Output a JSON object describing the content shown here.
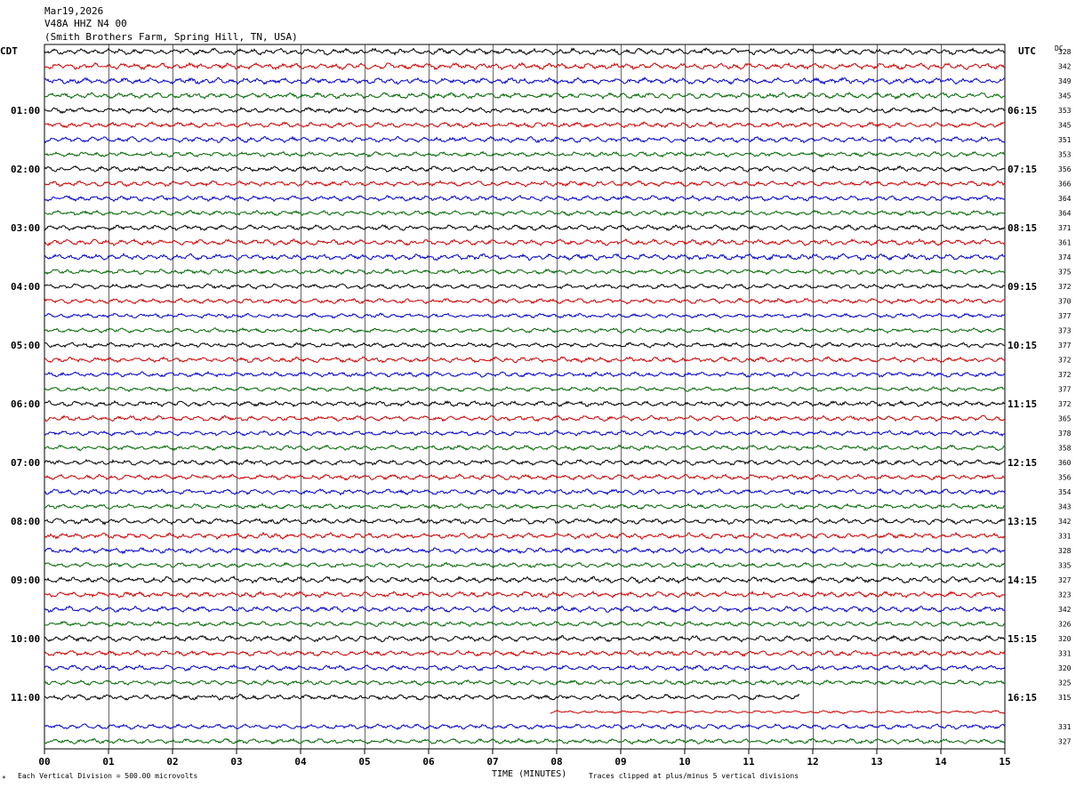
{
  "header": {
    "date": "Mar19,2026",
    "station": "V48A HHZ N4 00",
    "location": "(Smith Brothers Farm, Spring Hill, TN, USA)"
  },
  "left_tz": "CDT",
  "right_tz": "UTC",
  "dc_label": "DC",
  "footer": {
    "scale": "Each Vertical Division =  500.00 microvolts",
    "xlabel": "TIME (MINUTES)",
    "clip": "Traces clipped at plus/minus 5 vertical divisions",
    "corner": "*"
  },
  "colors": {
    "black": "#000000",
    "red": "#cc0000",
    "blue": "#0000cc",
    "green": "#006600",
    "grid": "#000000"
  },
  "chart_data": {
    "type": "line",
    "title": "V48A HHZ N4 00",
    "xlabel": "TIME (MINUTES)",
    "xlim": [
      0,
      15
    ],
    "x_ticks": [
      "00",
      "01",
      "02",
      "03",
      "04",
      "05",
      "06",
      "07",
      "08",
      "09",
      "10",
      "11",
      "12",
      "13",
      "14",
      "15"
    ],
    "rows_per_hour": 4,
    "row_minutes": 15,
    "left_hour_labels": [
      "01:00",
      "02:00",
      "03:00",
      "04:00",
      "05:00",
      "06:00",
      "07:00",
      "08:00",
      "09:00",
      "10:00",
      "11:00"
    ],
    "right_hour_labels": [
      "06:15",
      "07:15",
      "08:15",
      "09:15",
      "10:15",
      "11:15",
      "12:15",
      "13:15",
      "14:15",
      "15:15",
      "16:15"
    ],
    "color_cycle": [
      "black",
      "red",
      "blue",
      "green"
    ],
    "dc_offsets": [
      "328",
      "342",
      "349",
      "345",
      "353",
      "345",
      "351",
      "353",
      "356",
      "366",
      "364",
      "364",
      "371",
      "361",
      "374",
      "375",
      "372",
      "370",
      "377",
      "373",
      "377",
      "372",
      "372",
      "377",
      "372",
      "365",
      "378",
      "358",
      "360",
      "356",
      "354",
      "343",
      "342",
      "331",
      "328",
      "335",
      "327",
      "323",
      "342",
      "326",
      "320",
      "331",
      "320",
      "325",
      "315",
      "",
      "331",
      "327"
    ],
    "traces": [
      {
        "row": 0,
        "start_min": 0,
        "end_min": 15,
        "amplitude": 3.0
      },
      {
        "row": 1,
        "start_min": 0,
        "end_min": 15,
        "amplitude": 3.0
      },
      {
        "row": 2,
        "start_min": 0,
        "end_min": 15,
        "amplitude": 3.0
      },
      {
        "row": 3,
        "start_min": 0,
        "end_min": 15,
        "amplitude": 2.8
      },
      {
        "row": 4,
        "start_min": 0,
        "end_min": 15,
        "amplitude": 2.6
      },
      {
        "row": 5,
        "start_min": 0,
        "end_min": 15,
        "amplitude": 2.6
      },
      {
        "row": 6,
        "start_min": 0,
        "end_min": 15,
        "amplitude": 2.8
      },
      {
        "row": 7,
        "start_min": 0,
        "end_min": 15,
        "amplitude": 2.4
      },
      {
        "row": 8,
        "start_min": 0,
        "end_min": 15,
        "amplitude": 2.6
      },
      {
        "row": 9,
        "start_min": 0,
        "end_min": 15,
        "amplitude": 2.6
      },
      {
        "row": 10,
        "start_min": 0,
        "end_min": 15,
        "amplitude": 2.6
      },
      {
        "row": 11,
        "start_min": 0,
        "end_min": 15,
        "amplitude": 2.4
      },
      {
        "row": 12,
        "start_min": 0,
        "end_min": 15,
        "amplitude": 2.6
      },
      {
        "row": 13,
        "start_min": 0,
        "end_min": 15,
        "amplitude": 2.8
      },
      {
        "row": 14,
        "start_min": 0,
        "end_min": 15,
        "amplitude": 3.0
      },
      {
        "row": 15,
        "start_min": 0,
        "end_min": 15,
        "amplitude": 2.4
      },
      {
        "row": 16,
        "start_min": 0,
        "end_min": 15,
        "amplitude": 2.4
      },
      {
        "row": 17,
        "start_min": 0,
        "end_min": 15,
        "amplitude": 2.4
      },
      {
        "row": 18,
        "start_min": 0,
        "end_min": 15,
        "amplitude": 2.2
      },
      {
        "row": 19,
        "start_min": 0,
        "end_min": 15,
        "amplitude": 2.2
      },
      {
        "row": 20,
        "start_min": 0,
        "end_min": 15,
        "amplitude": 2.4
      },
      {
        "row": 21,
        "start_min": 0,
        "end_min": 15,
        "amplitude": 2.6
      },
      {
        "row": 22,
        "start_min": 0,
        "end_min": 15,
        "amplitude": 2.4
      },
      {
        "row": 23,
        "start_min": 0,
        "end_min": 15,
        "amplitude": 2.2
      },
      {
        "row": 24,
        "start_min": 0,
        "end_min": 15,
        "amplitude": 2.6
      },
      {
        "row": 25,
        "start_min": 0,
        "end_min": 15,
        "amplitude": 2.6
      },
      {
        "row": 26,
        "start_min": 0,
        "end_min": 15,
        "amplitude": 2.4
      },
      {
        "row": 27,
        "start_min": 0,
        "end_min": 15,
        "amplitude": 2.4
      },
      {
        "row": 28,
        "start_min": 0,
        "end_min": 15,
        "amplitude": 2.6
      },
      {
        "row": 29,
        "start_min": 0,
        "end_min": 15,
        "amplitude": 2.6
      },
      {
        "row": 30,
        "start_min": 0,
        "end_min": 15,
        "amplitude": 2.6
      },
      {
        "row": 31,
        "start_min": 0,
        "end_min": 15,
        "amplitude": 2.4
      },
      {
        "row": 32,
        "start_min": 0,
        "end_min": 15,
        "amplitude": 2.8
      },
      {
        "row": 33,
        "start_min": 0,
        "end_min": 15,
        "amplitude": 2.8
      },
      {
        "row": 34,
        "start_min": 0,
        "end_min": 15,
        "amplitude": 2.6
      },
      {
        "row": 35,
        "start_min": 0,
        "end_min": 15,
        "amplitude": 2.4
      },
      {
        "row": 36,
        "start_min": 0,
        "end_min": 15,
        "amplitude": 3.0
      },
      {
        "row": 37,
        "start_min": 0,
        "end_min": 15,
        "amplitude": 2.8
      },
      {
        "row": 38,
        "start_min": 0,
        "end_min": 15,
        "amplitude": 2.8
      },
      {
        "row": 39,
        "start_min": 0,
        "end_min": 15,
        "amplitude": 2.4
      },
      {
        "row": 40,
        "start_min": 0,
        "end_min": 15,
        "amplitude": 2.8
      },
      {
        "row": 41,
        "start_min": 0,
        "end_min": 15,
        "amplitude": 2.6
      },
      {
        "row": 42,
        "start_min": 0,
        "end_min": 15,
        "amplitude": 2.6
      },
      {
        "row": 43,
        "start_min": 0,
        "end_min": 15,
        "amplitude": 2.4
      },
      {
        "row": 44,
        "start_min": 0,
        "end_min": 11.8,
        "amplitude": 2.6
      },
      {
        "row": 45,
        "start_min": 7.9,
        "end_min": 15,
        "amplitude": 1.4
      },
      {
        "row": 46,
        "start_min": 0,
        "end_min": 15,
        "amplitude": 2.4
      },
      {
        "row": 47,
        "start_min": 0,
        "end_min": 15,
        "amplitude": 2.4
      }
    ]
  }
}
